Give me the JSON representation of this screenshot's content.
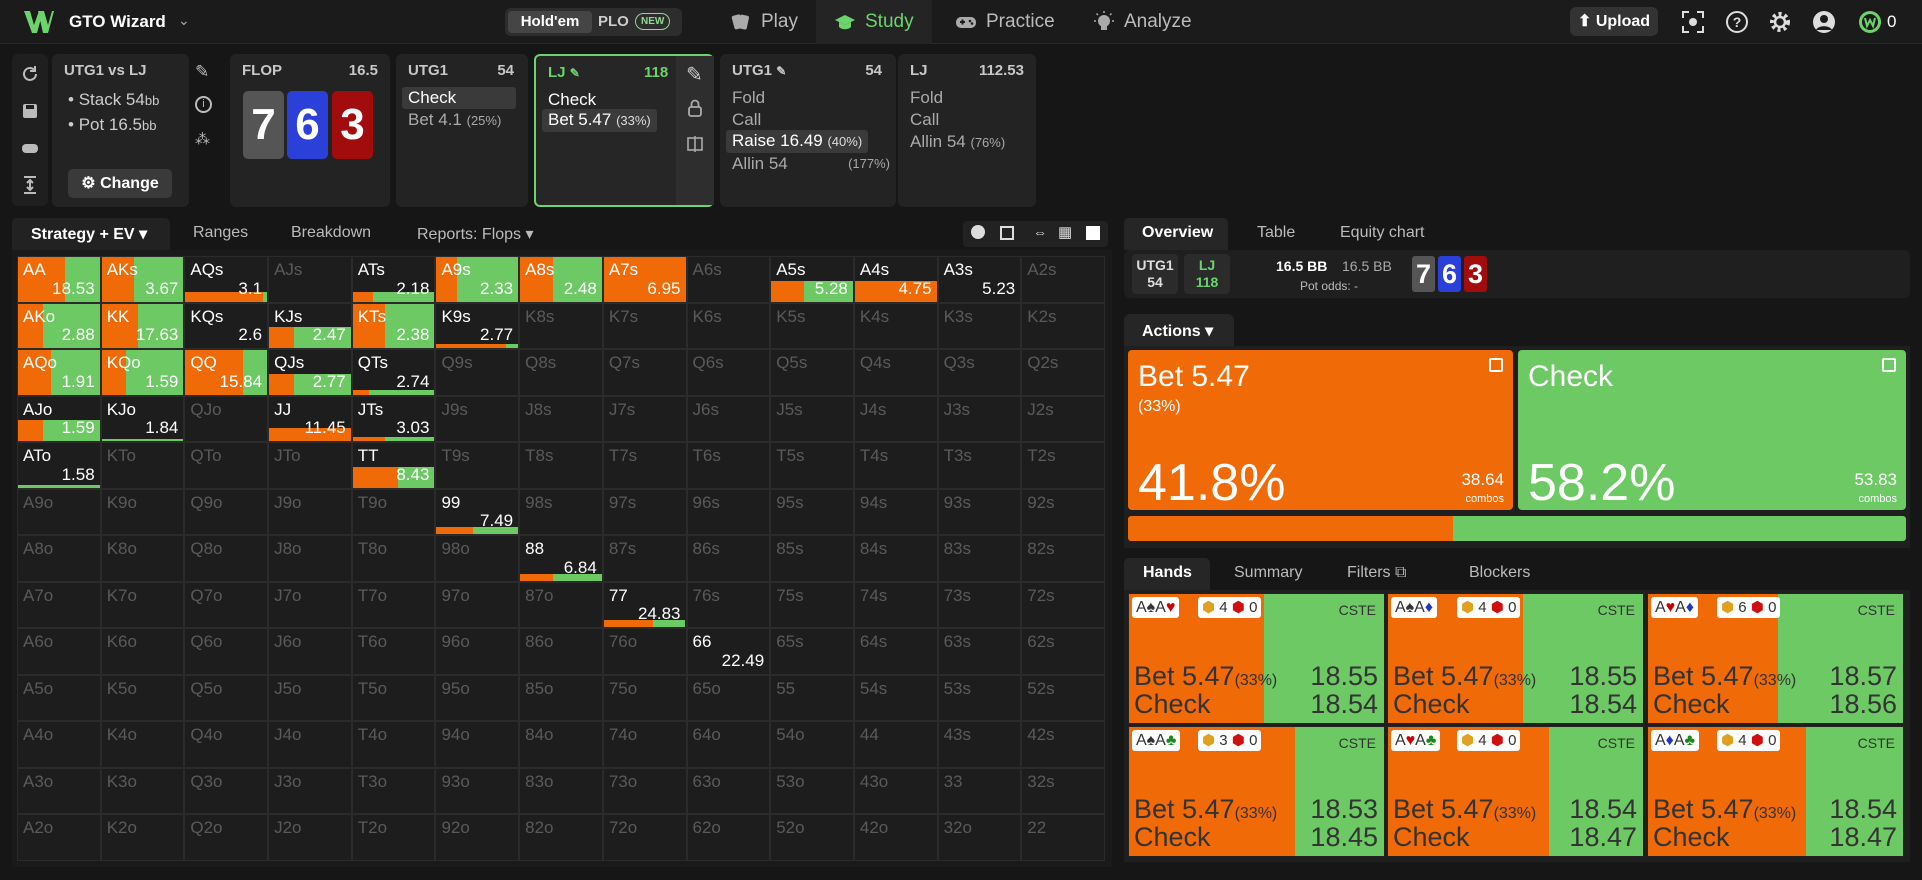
{
  "nav": {
    "brand": "GTO Wizard",
    "holdem": "Hold'em",
    "plo": "PLO",
    "new_badge": "NEW",
    "items": [
      "Play",
      "Study",
      "Practice",
      "Analyze"
    ],
    "upload": "Upload",
    "credits": "0"
  },
  "spot": {
    "title": "UTG1 vs LJ",
    "stack": "Stack 54",
    "stack_unit": "bb",
    "pot": "Pot 16.5",
    "pot_unit": "bb",
    "change": "Change"
  },
  "flop": {
    "label": "FLOP",
    "pot": "16.5",
    "cards": [
      "7",
      "6",
      "3"
    ]
  },
  "nodes": [
    {
      "player": "UTG1",
      "stack": "54",
      "actions": [
        {
          "label": "Check",
          "pct": ""
        },
        {
          "label": "Bet 4.1",
          "pct": "(25%)"
        }
      ]
    },
    {
      "player": "LJ",
      "stack": "118",
      "actions": [
        {
          "label": "Check",
          "pct": ""
        },
        {
          "label": "Bet 5.47",
          "pct": "(33%)"
        }
      ]
    },
    {
      "player": "UTG1",
      "stack": "54",
      "actions": [
        {
          "label": "Fold",
          "pct": ""
        },
        {
          "label": "Call",
          "pct": ""
        },
        {
          "label": "Raise 16.49",
          "pct": "(40%)"
        },
        {
          "label": "Allin 54",
          "pct": "(177%)"
        }
      ]
    },
    {
      "player": "LJ",
      "stack": "112.53",
      "actions": [
        {
          "label": "Fold",
          "pct": ""
        },
        {
          "label": "Call",
          "pct": ""
        },
        {
          "label": "Allin 54",
          "pct": "(76%)"
        }
      ]
    }
  ],
  "left_tabs": [
    "Strategy + EV",
    "Ranges",
    "Breakdown",
    "Reports: Flops"
  ],
  "right_tabs": [
    "Overview",
    "Table",
    "Equity chart"
  ],
  "info": {
    "p1": "UTG1",
    "p1_stack": "54",
    "p2": "LJ",
    "p2_stack": "118",
    "pot1": "16.5 BB",
    "pot2": "16.5 BB",
    "pot_odds_label": "Pot odds:",
    "pot_odds": "-"
  },
  "actions_label": "Actions",
  "big_actions": [
    {
      "label": "Bet 5.47",
      "size": "(33%)",
      "pct": "41.8%",
      "combos": "38.64",
      "combos_label": "combos",
      "color": "#f06a08"
    },
    {
      "label": "Check",
      "size": "",
      "pct": "58.2%",
      "combos": "53.83",
      "combos_label": "combos",
      "color": "#6cc964"
    }
  ],
  "freq": [
    41.8,
    58.2
  ],
  "hand_tabs": [
    "Hands",
    "Summary",
    "Filters",
    "Blockers"
  ],
  "hands": [
    {
      "h": "A♠A♥",
      "b1": "4",
      "b2": "0",
      "cs": "CSTE",
      "bet": "Bet 5.47",
      "sz": "(33%)",
      "ev_bet": "18.55",
      "chk": "Check",
      "ev_chk": "18.54",
      "bet_frac": 0.53
    },
    {
      "h": "A♠A♦",
      "b1": "4",
      "b2": "0",
      "cs": "CSTE",
      "bet": "Bet 5.47",
      "sz": "(33%)",
      "ev_bet": "18.55",
      "chk": "Check",
      "ev_chk": "18.54",
      "bet_frac": 0.53
    },
    {
      "h": "A♥A♦",
      "b1": "6",
      "b2": "0",
      "cs": "CSTE",
      "bet": "Bet 5.47",
      "sz": "(33%)",
      "ev_bet": "18.57",
      "chk": "Check",
      "ev_chk": "18.56",
      "bet_frac": 0.51
    },
    {
      "h": "A♠A♣",
      "b1": "3",
      "b2": "0",
      "cs": "CSTE",
      "bet": "Bet 5.47",
      "sz": "(33%)",
      "ev_bet": "18.53",
      "chk": "Check",
      "ev_chk": "18.45",
      "bet_frac": 0.65
    },
    {
      "h": "A♥A♣",
      "b1": "4",
      "b2": "0",
      "cs": "CSTE",
      "bet": "Bet 5.47",
      "sz": "(33%)",
      "ev_bet": "18.54",
      "chk": "Check",
      "ev_chk": "18.47",
      "bet_frac": 0.63
    },
    {
      "h": "A♦A♣",
      "b1": "4",
      "b2": "0",
      "cs": "CSTE",
      "bet": "Bet 5.47",
      "sz": "(33%)",
      "ev_bet": "18.54",
      "chk": "Check",
      "ev_chk": "18.47",
      "bet_frac": 0.62
    }
  ],
  "grid": [
    [
      "AA",
      "AKs",
      "AQs",
      "AJs",
      "ATs",
      "A9s",
      "A8s",
      "A7s",
      "A6s",
      "A5s",
      "A4s",
      "A3s",
      "A2s"
    ],
    [
      "AKo",
      "KK",
      "KQs",
      "KJs",
      "KTs",
      "K9s",
      "K8s",
      "K7s",
      "K6s",
      "K5s",
      "K4s",
      "K3s",
      "K2s"
    ],
    [
      "AQo",
      "KQo",
      "QQ",
      "QJs",
      "QTs",
      "Q9s",
      "Q8s",
      "Q7s",
      "Q6s",
      "Q5s",
      "Q4s",
      "Q3s",
      "Q2s"
    ],
    [
      "AJo",
      "KJo",
      "QJo",
      "JJ",
      "JTs",
      "J9s",
      "J8s",
      "J7s",
      "J6s",
      "J5s",
      "J4s",
      "J3s",
      "J2s"
    ],
    [
      "ATo",
      "KTo",
      "QTo",
      "JTo",
      "TT",
      "T9s",
      "T8s",
      "T7s",
      "T6s",
      "T5s",
      "T4s",
      "T3s",
      "T2s"
    ],
    [
      "A9o",
      "K9o",
      "Q9o",
      "J9o",
      "T9o",
      "99",
      "98s",
      "97s",
      "96s",
      "95s",
      "94s",
      "93s",
      "92s"
    ],
    [
      "A8o",
      "K8o",
      "Q8o",
      "J8o",
      "T8o",
      "98o",
      "88",
      "87s",
      "86s",
      "85s",
      "84s",
      "83s",
      "82s"
    ],
    [
      "A7o",
      "K7o",
      "Q7o",
      "J7o",
      "T7o",
      "97o",
      "87o",
      "77",
      "76s",
      "75s",
      "74s",
      "73s",
      "72s"
    ],
    [
      "A6o",
      "K6o",
      "Q6o",
      "J6o",
      "T6o",
      "96o",
      "86o",
      "76o",
      "66",
      "65s",
      "64s",
      "63s",
      "62s"
    ],
    [
      "A5o",
      "K5o",
      "Q5o",
      "J5o",
      "T5o",
      "95o",
      "85o",
      "75o",
      "65o",
      "55",
      "54s",
      "53s",
      "52s"
    ],
    [
      "A4o",
      "K4o",
      "Q4o",
      "J4o",
      "T4o",
      "94o",
      "84o",
      "74o",
      "64o",
      "54o",
      "44",
      "43s",
      "42s"
    ],
    [
      "A3o",
      "K3o",
      "Q3o",
      "J3o",
      "T3o",
      "93o",
      "83o",
      "73o",
      "63o",
      "53o",
      "43o",
      "33",
      "32s"
    ],
    [
      "A2o",
      "K2o",
      "Q2o",
      "J2o",
      "T2o",
      "92o",
      "82o",
      "72o",
      "62o",
      "52o",
      "42o",
      "32o",
      "22"
    ]
  ],
  "cells": {
    "AA": {
      "ev": "18.53",
      "bet": 0.58,
      "chk": 0.42,
      "h": 1
    },
    "AKs": {
      "ev": "3.67",
      "bet": 0.4,
      "chk": 0.6,
      "h": 1
    },
    "AQs": {
      "ev": "3.1",
      "bet": 0.95,
      "chk": 0.05,
      "h": 0.22
    },
    "ATs": {
      "ev": "2.18",
      "bet": 0.25,
      "chk": 0.75,
      "h": 0.22
    },
    "A9s": {
      "ev": "2.33",
      "bet": 0.25,
      "chk": 0.75,
      "h": 1
    },
    "A8s": {
      "ev": "2.48",
      "bet": 0.4,
      "chk": 0.6,
      "h": 1
    },
    "A7s": {
      "ev": "6.95",
      "bet": 1,
      "chk": 0,
      "h": 1
    },
    "A5s": {
      "ev": "5.28",
      "bet": 0.4,
      "chk": 0.6,
      "h": 0.47
    },
    "A4s": {
      "ev": "4.75",
      "bet": 1,
      "chk": 0,
      "h": 0.47
    },
    "A3s": {
      "ev": "5.23",
      "bet": 0,
      "chk": 0,
      "h": 0
    },
    "AKo": {
      "ev": "2.88",
      "bet": 0.3,
      "chk": 0.7,
      "h": 1
    },
    "KK": {
      "ev": "17.63",
      "bet": 0.45,
      "chk": 0.55,
      "h": 1
    },
    "KQs": {
      "ev": "2.6",
      "bet": 0,
      "chk": 0,
      "h": 0
    },
    "KJs": {
      "ev": "2.47",
      "bet": 0.3,
      "chk": 0.7,
      "h": 0.47
    },
    "KTs": {
      "ev": "2.38",
      "bet": 0.4,
      "chk": 0.6,
      "h": 1
    },
    "K9s": {
      "ev": "2.77",
      "bet": 0.85,
      "chk": 0.15,
      "h": 0.1
    },
    "AQo": {
      "ev": "1.91",
      "bet": 0.4,
      "chk": 0.6,
      "h": 1
    },
    "KQo": {
      "ev": "1.59",
      "bet": 0.3,
      "chk": 0.7,
      "h": 1
    },
    "QQ": {
      "ev": "15.84",
      "bet": 0.7,
      "chk": 0.3,
      "h": 1
    },
    "QJs": {
      "ev": "2.77",
      "bet": 0.3,
      "chk": 0.7,
      "h": 0.47
    },
    "QTs": {
      "ev": "2.74",
      "bet": 0.2,
      "chk": 0.8,
      "h": 0.1
    },
    "AJo": {
      "ev": "1.59",
      "bet": 0.3,
      "chk": 0.7,
      "h": 0.47
    },
    "KJo": {
      "ev": "1.84",
      "bet": 0,
      "chk": 1,
      "h": 0.05
    },
    "JJ": {
      "ev": "11.45",
      "bet": 1,
      "chk": 0,
      "h": 0.3
    },
    "JTs": {
      "ev": "3.03",
      "bet": 0.4,
      "chk": 0.6,
      "h": 0.1
    },
    "ATo": {
      "ev": "1.58",
      "bet": 0,
      "chk": 1,
      "h": 0.05
    },
    "TT": {
      "ev": "8.43",
      "bet": 0.55,
      "chk": 0.45,
      "h": 0.47
    },
    "99": {
      "ev": "7.49",
      "bet": 0.45,
      "chk": 0.55,
      "h": 0.15
    },
    "88": {
      "ev": "6.84",
      "bet": 0.4,
      "chk": 0.6,
      "h": 0.15
    },
    "77": {
      "ev": "24.83",
      "bet": 0.6,
      "chk": 0.4,
      "h": 0.15
    },
    "66": {
      "ev": "22.49",
      "bet": 0,
      "chk": 0,
      "h": 0
    }
  }
}
